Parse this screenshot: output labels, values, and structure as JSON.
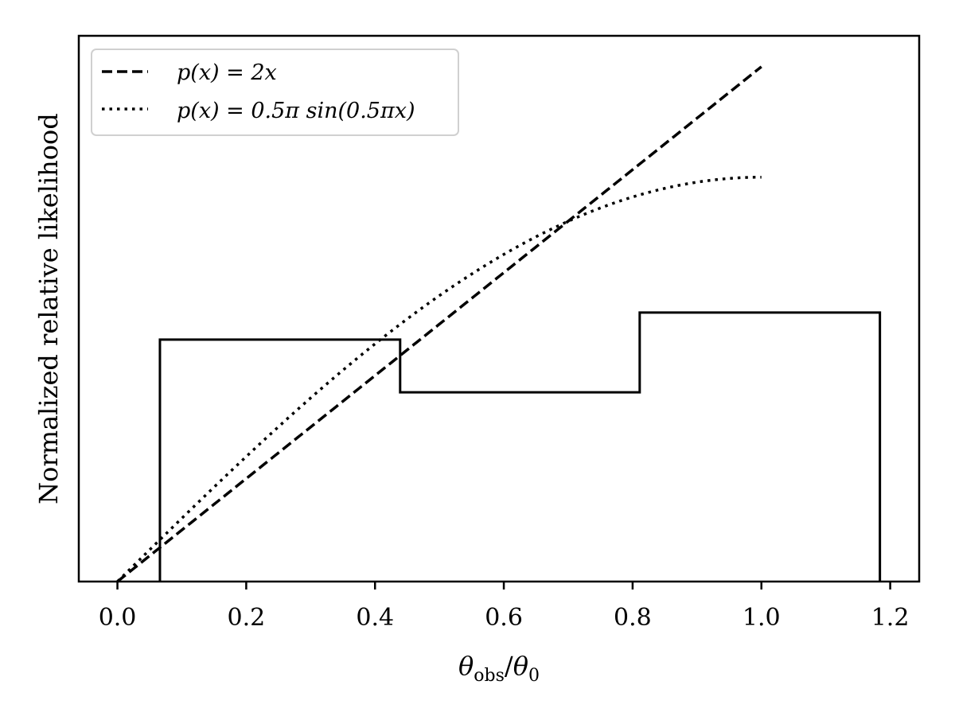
{
  "chart_data": {
    "type": "line",
    "title": "",
    "xlabel": "θobs/θ0",
    "xlabel_parts": {
      "main": "θ",
      "sub1": "obs",
      "slash": "/",
      "main2": "θ",
      "sub2": "0"
    },
    "ylabel": "Normalized relative likelihood",
    "xlim": [
      -0.06,
      1.245
    ],
    "ylim": [
      0,
      2.12
    ],
    "x_ticks": [
      0.0,
      0.2,
      0.4,
      0.6,
      0.8,
      1.0,
      1.2
    ],
    "x_tick_labels": [
      "0.0",
      "0.2",
      "0.4",
      "0.6",
      "0.8",
      "1.0",
      "1.2"
    ],
    "y_ticks_visible": false,
    "grid": false,
    "legend_position": "top-left",
    "series": [
      {
        "name": "p(x) = 2x",
        "kind": "line",
        "style": "dashed",
        "color": "#000000",
        "formula": "2x",
        "x": [
          0.0,
          0.1,
          0.2,
          0.3,
          0.4,
          0.5,
          0.6,
          0.7,
          0.8,
          0.9,
          1.0
        ],
        "y": [
          0.0,
          0.2,
          0.4,
          0.6,
          0.8,
          1.0,
          1.2,
          1.4,
          1.6,
          1.8,
          2.0
        ]
      },
      {
        "name": "p(x) = 0.5π sin(0.5πx)",
        "kind": "line",
        "style": "dotted",
        "color": "#000000",
        "formula": "0.5*pi*sin(0.5*pi*x)",
        "x": [
          0.0,
          0.1,
          0.2,
          0.3,
          0.4,
          0.5,
          0.6,
          0.7,
          0.8,
          0.9,
          1.0
        ],
        "y": [
          0.0,
          0.246,
          0.485,
          0.713,
          0.923,
          1.111,
          1.271,
          1.4,
          1.494,
          1.551,
          1.571
        ]
      },
      {
        "kind": "step-histogram",
        "style": "solid",
        "color": "#000000",
        "bin_edges": [
          0.066,
          0.439,
          0.811,
          1.184
        ],
        "values": [
          0.94,
          0.735,
          1.045
        ]
      }
    ]
  }
}
